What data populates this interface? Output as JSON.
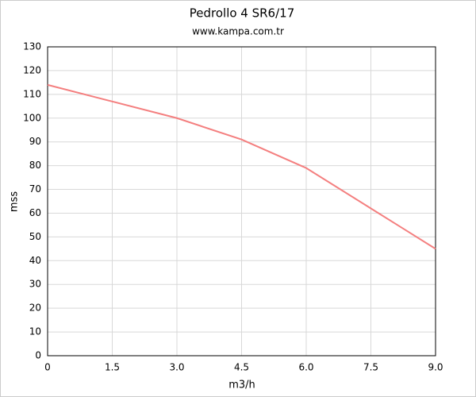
{
  "chart_data": {
    "type": "line",
    "title": "Pedrollo 4 SR6/17",
    "subtitle": "www.kampa.com.tr",
    "x_label": "m3/h",
    "y_label": "mss",
    "x": [
      0,
      1.5,
      3,
      4.5,
      6,
      7.5,
      9
    ],
    "series": [
      {
        "color": "#f47f7f",
        "values": [
          114,
          107,
          100,
          91,
          79,
          62,
          45
        ]
      }
    ],
    "xlim": [
      0,
      9
    ],
    "xticks": [
      0,
      1.5,
      {
        "value": 3,
        "label": "3.0"
      },
      4.5,
      {
        "value": 6,
        "label": "6.0"
      },
      7.5,
      {
        "value": 9,
        "label": "9.0"
      }
    ],
    "ylim": [
      0,
      130
    ],
    "yticks": [
      0,
      10,
      20,
      30,
      40,
      50,
      60,
      70,
      80,
      90,
      100,
      110,
      120,
      130
    ],
    "grid": true
  }
}
